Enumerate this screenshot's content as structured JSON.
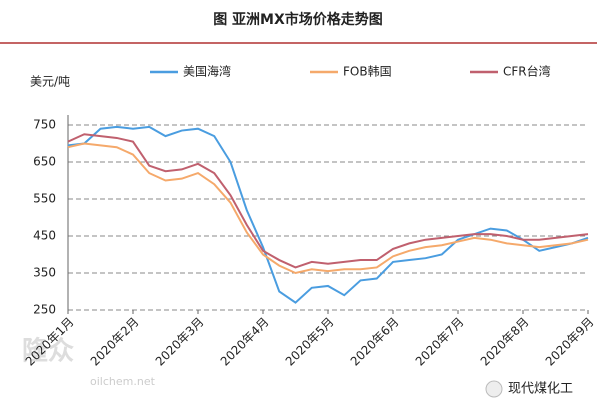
{
  "chart_data": {
    "type": "line",
    "title": "图 亚洲MX市场价格走势图",
    "y_label": "美元/吨",
    "categories": [
      "2020年1月",
      null,
      null,
      null,
      "2020年2月",
      null,
      null,
      null,
      "2020年3月",
      null,
      null,
      null,
      "2020年4月",
      null,
      null,
      null,
      "2020年5月",
      null,
      null,
      null,
      "2020年6月",
      null,
      null,
      null,
      "2020年7月",
      null,
      null,
      null,
      "2020年8月",
      null,
      null,
      null,
      "2020年9月"
    ],
    "series": [
      {
        "name": "美国海湾",
        "color": "#4a9de0",
        "values": [
          695,
          700,
          740,
          745,
          740,
          745,
          720,
          735,
          740,
          720,
          650,
          520,
          420,
          300,
          270,
          310,
          315,
          290,
          330,
          335,
          380,
          385,
          390,
          400,
          440,
          455,
          470,
          465,
          440,
          410,
          420,
          430,
          445
        ]
      },
      {
        "name": "FOB韩国",
        "color": "#f5a96b",
        "values": [
          690,
          700,
          695,
          690,
          670,
          620,
          600,
          605,
          620,
          590,
          540,
          460,
          400,
          370,
          350,
          360,
          355,
          360,
          360,
          365,
          395,
          410,
          420,
          425,
          435,
          445,
          440,
          430,
          425,
          420,
          425,
          430,
          440
        ]
      },
      {
        "name": "CFR台湾",
        "color": "#c0606e",
        "values": [
          705,
          725,
          720,
          715,
          705,
          640,
          625,
          630,
          645,
          620,
          560,
          480,
          410,
          385,
          365,
          380,
          375,
          380,
          385,
          385,
          415,
          430,
          440,
          445,
          450,
          455,
          455,
          450,
          440,
          440,
          445,
          450,
          455
        ]
      }
    ],
    "ylim": [
      250,
      750
    ],
    "yticks": [
      250,
      350,
      450,
      550,
      650,
      750
    ],
    "grid": true,
    "watermark": [
      "隆众",
      "oilchem.net"
    ],
    "badge": "现代煤化工"
  }
}
